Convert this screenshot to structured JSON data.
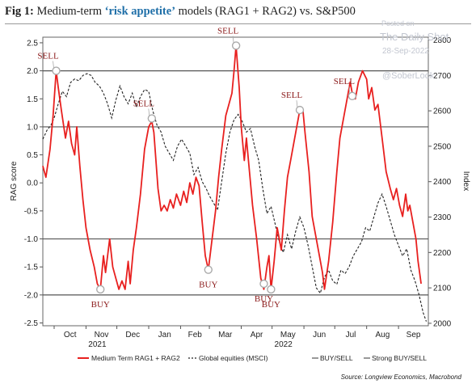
{
  "figure": {
    "prefix": "Fig 1:",
    "title_before": "Medium-term ",
    "title_highlight": "‘risk appetite’",
    "title_after": " models (RAG1 + RAG2) vs. S&P500"
  },
  "watermark": {
    "posted": "Posted on",
    "site": "The Daily Shot",
    "date": "28-Sep-2022",
    "handle": "@SoberLook"
  },
  "source": "Source: Longview Economics, Macrobond",
  "colors": {
    "rag": "#e8201f",
    "equities": "#222222",
    "threshold": "#555555",
    "annotation": "#8b1a1a",
    "marker": "#aaaaaa"
  },
  "chart_data": {
    "type": "line",
    "x_range": [
      "2021-09-20",
      "2022-09-30"
    ],
    "x_ticks": [
      {
        "label": "Oct",
        "date": "2021-10-01"
      },
      {
        "label": "Nov",
        "date": "2021-11-01"
      },
      {
        "label": "Dec",
        "date": "2021-12-01"
      },
      {
        "label": "Jan",
        "date": "2022-01-01"
      },
      {
        "label": "Feb",
        "date": "2022-02-01"
      },
      {
        "label": "Mar",
        "date": "2022-03-01"
      },
      {
        "label": "Apr",
        "date": "2022-04-01"
      },
      {
        "label": "May",
        "date": "2022-05-01"
      },
      {
        "label": "Jun",
        "date": "2022-06-01"
      },
      {
        "label": "Jul",
        "date": "2022-07-01"
      },
      {
        "label": "Aug",
        "date": "2022-08-01"
      },
      {
        "label": "Sep",
        "date": "2022-09-01"
      }
    ],
    "year_labels": [
      {
        "label": "2021",
        "date": "2021-11-01"
      },
      {
        "label": "2022",
        "date": "2022-05-01"
      }
    ],
    "y_left": {
      "label": "RAG score",
      "range": [
        -2.55,
        2.6
      ],
      "ticks": [
        "2.5",
        "2.0",
        "1.5",
        "1.0",
        "0.5",
        "0.0",
        "-0.5",
        "-1.0",
        "-1.5",
        "-2.0",
        "-2.5"
      ]
    },
    "y_right": {
      "label": "Index",
      "range": [
        1993,
        2808
      ],
      "ticks": [
        "2800",
        "2700",
        "2600",
        "2500",
        "2400",
        "2300",
        "2200",
        "2100",
        "2000"
      ]
    },
    "thresholds": {
      "strong": [
        2.0,
        -2.0
      ],
      "buy_sell": [
        1.0,
        -1.0
      ]
    },
    "series": [
      {
        "name": "Medium Term RAG1 + RAG2",
        "axis": "left",
        "points": [
          [
            "2021-09-20",
            0.3
          ],
          [
            "2021-09-23",
            0.1
          ],
          [
            "2021-09-27",
            0.6
          ],
          [
            "2021-09-30",
            1.2
          ],
          [
            "2021-10-03",
            2.0
          ],
          [
            "2021-10-05",
            1.7
          ],
          [
            "2021-10-08",
            1.3
          ],
          [
            "2021-10-12",
            0.8
          ],
          [
            "2021-10-15",
            1.1
          ],
          [
            "2021-10-18",
            0.7
          ],
          [
            "2021-10-21",
            0.5
          ],
          [
            "2021-10-23",
            1.0
          ],
          [
            "2021-10-26",
            0.3
          ],
          [
            "2021-10-29",
            -0.3
          ],
          [
            "2021-11-01",
            -0.8
          ],
          [
            "2021-11-05",
            -1.2
          ],
          [
            "2021-11-09",
            -1.5
          ],
          [
            "2021-11-12",
            -1.8
          ],
          [
            "2021-11-15",
            -1.9
          ],
          [
            "2021-11-18",
            -1.3
          ],
          [
            "2021-11-20",
            -1.6
          ],
          [
            "2021-11-24",
            -1.0
          ],
          [
            "2021-11-27",
            -1.5
          ],
          [
            "2021-11-30",
            -1.7
          ],
          [
            "2021-12-03",
            -1.9
          ],
          [
            "2021-12-06",
            -1.75
          ],
          [
            "2021-12-09",
            -1.9
          ],
          [
            "2021-12-12",
            -1.4
          ],
          [
            "2021-12-14",
            -1.8
          ],
          [
            "2021-12-17",
            -1.2
          ],
          [
            "2021-12-20",
            -0.8
          ],
          [
            "2021-12-24",
            -0.2
          ],
          [
            "2021-12-28",
            0.6
          ],
          [
            "2022-01-01",
            1.0
          ],
          [
            "2022-01-04",
            1.1
          ],
          [
            "2022-01-06",
            0.9
          ],
          [
            "2022-01-10",
            -0.1
          ],
          [
            "2022-01-13",
            -0.5
          ],
          [
            "2022-01-16",
            -0.4
          ],
          [
            "2022-01-19",
            -0.5
          ],
          [
            "2022-01-22",
            -0.3
          ],
          [
            "2022-01-25",
            -0.45
          ],
          [
            "2022-01-28",
            -0.2
          ],
          [
            "2022-02-01",
            -0.4
          ],
          [
            "2022-02-04",
            -0.15
          ],
          [
            "2022-02-07",
            -0.35
          ],
          [
            "2022-02-10",
            0.0
          ],
          [
            "2022-02-13",
            -0.2
          ],
          [
            "2022-02-16",
            0.1
          ],
          [
            "2022-02-19",
            -0.05
          ],
          [
            "2022-02-22",
            -0.7
          ],
          [
            "2022-02-25",
            -1.3
          ],
          [
            "2022-02-28",
            -1.55
          ],
          [
            "2022-03-03",
            -1.1
          ],
          [
            "2022-03-07",
            -0.5
          ],
          [
            "2022-03-10",
            0.1
          ],
          [
            "2022-03-13",
            0.6
          ],
          [
            "2022-03-17",
            1.2
          ],
          [
            "2022-03-20",
            1.4
          ],
          [
            "2022-03-23",
            1.6
          ],
          [
            "2022-03-25",
            2.0
          ],
          [
            "2022-03-27",
            2.45
          ],
          [
            "2022-03-30",
            1.7
          ],
          [
            "2022-04-01",
            1.0
          ],
          [
            "2022-04-04",
            0.4
          ],
          [
            "2022-04-06",
            0.8
          ],
          [
            "2022-04-09",
            0.2
          ],
          [
            "2022-04-12",
            -0.4
          ],
          [
            "2022-04-16",
            -1.0
          ],
          [
            "2022-04-20",
            -1.7
          ],
          [
            "2022-04-23",
            -1.9
          ],
          [
            "2022-04-26",
            -1.5
          ],
          [
            "2022-04-28",
            -1.3
          ],
          [
            "2022-04-30",
            -1.9
          ],
          [
            "2022-05-03",
            -1.4
          ],
          [
            "2022-05-06",
            -0.8
          ],
          [
            "2022-05-10",
            -1.2
          ],
          [
            "2022-05-13",
            -0.5
          ],
          [
            "2022-05-16",
            0.1
          ],
          [
            "2022-05-19",
            0.4
          ],
          [
            "2022-05-22",
            0.7
          ],
          [
            "2022-05-25",
            1.0
          ],
          [
            "2022-05-28",
            1.3
          ],
          [
            "2022-05-31",
            1.3
          ],
          [
            "2022-06-02",
            0.9
          ],
          [
            "2022-06-06",
            0.2
          ],
          [
            "2022-06-09",
            -0.6
          ],
          [
            "2022-06-13",
            -1.0
          ],
          [
            "2022-06-16",
            -1.3
          ],
          [
            "2022-06-19",
            -1.6
          ],
          [
            "2022-06-21",
            -1.9
          ],
          [
            "2022-06-25",
            -1.4
          ],
          [
            "2022-06-29",
            -0.7
          ],
          [
            "2022-07-03",
            0.2
          ],
          [
            "2022-07-06",
            0.8
          ],
          [
            "2022-07-10",
            1.2
          ],
          [
            "2022-07-13",
            1.5
          ],
          [
            "2022-07-16",
            1.8
          ],
          [
            "2022-07-18",
            1.6
          ],
          [
            "2022-07-21",
            1.5
          ],
          [
            "2022-07-24",
            1.8
          ],
          [
            "2022-07-28",
            2.0
          ],
          [
            "2022-08-01",
            1.85
          ],
          [
            "2022-08-03",
            1.5
          ],
          [
            "2022-08-06",
            1.7
          ],
          [
            "2022-08-09",
            1.3
          ],
          [
            "2022-08-12",
            1.4
          ],
          [
            "2022-08-16",
            0.8
          ],
          [
            "2022-08-20",
            0.2
          ],
          [
            "2022-08-24",
            -0.1
          ],
          [
            "2022-08-27",
            -0.3
          ],
          [
            "2022-08-30",
            -0.1
          ],
          [
            "2022-09-02",
            -0.4
          ],
          [
            "2022-09-05",
            -0.6
          ],
          [
            "2022-09-08",
            -0.2
          ],
          [
            "2022-09-10",
            -0.5
          ],
          [
            "2022-09-12",
            -0.4
          ],
          [
            "2022-09-15",
            -0.7
          ],
          [
            "2022-09-18",
            -1.0
          ],
          [
            "2022-09-20",
            -1.4
          ],
          [
            "2022-09-23",
            -1.8
          ]
        ]
      },
      {
        "name": "Global equities (MSCI)",
        "axis": "right",
        "points": [
          [
            "2021-09-20",
            2520
          ],
          [
            "2021-09-24",
            2545
          ],
          [
            "2021-09-28",
            2560
          ],
          [
            "2021-10-01",
            2580
          ],
          [
            "2021-10-05",
            2620
          ],
          [
            "2021-10-09",
            2655
          ],
          [
            "2021-10-13",
            2640
          ],
          [
            "2021-10-17",
            2680
          ],
          [
            "2021-10-21",
            2690
          ],
          [
            "2021-10-25",
            2685
          ],
          [
            "2021-10-29",
            2700
          ],
          [
            "2021-11-02",
            2705
          ],
          [
            "2021-11-06",
            2700
          ],
          [
            "2021-11-10",
            2680
          ],
          [
            "2021-11-14",
            2670
          ],
          [
            "2021-11-18",
            2650
          ],
          [
            "2021-11-22",
            2620
          ],
          [
            "2021-11-26",
            2580
          ],
          [
            "2021-11-30",
            2630
          ],
          [
            "2021-12-04",
            2670
          ],
          [
            "2021-12-08",
            2640
          ],
          [
            "2021-12-12",
            2620
          ],
          [
            "2021-12-16",
            2650
          ],
          [
            "2021-12-20",
            2610
          ],
          [
            "2021-12-24",
            2640
          ],
          [
            "2021-12-28",
            2660
          ],
          [
            "2022-01-01",
            2655
          ],
          [
            "2022-01-05",
            2600
          ],
          [
            "2022-01-09",
            2560
          ],
          [
            "2022-01-13",
            2540
          ],
          [
            "2022-01-17",
            2500
          ],
          [
            "2022-01-21",
            2480
          ],
          [
            "2022-01-25",
            2460
          ],
          [
            "2022-01-29",
            2500
          ],
          [
            "2022-02-02",
            2520
          ],
          [
            "2022-02-06",
            2500
          ],
          [
            "2022-02-10",
            2480
          ],
          [
            "2022-02-14",
            2420
          ],
          [
            "2022-02-18",
            2440
          ],
          [
            "2022-02-22",
            2400
          ],
          [
            "2022-02-26",
            2380
          ],
          [
            "2022-03-01",
            2360
          ],
          [
            "2022-03-05",
            2340
          ],
          [
            "2022-03-09",
            2320
          ],
          [
            "2022-03-13",
            2400
          ],
          [
            "2022-03-17",
            2480
          ],
          [
            "2022-03-21",
            2540
          ],
          [
            "2022-03-25",
            2575
          ],
          [
            "2022-03-29",
            2590
          ],
          [
            "2022-04-02",
            2570
          ],
          [
            "2022-04-06",
            2540
          ],
          [
            "2022-04-10",
            2550
          ],
          [
            "2022-04-14",
            2500
          ],
          [
            "2022-04-18",
            2460
          ],
          [
            "2022-04-22",
            2380
          ],
          [
            "2022-04-26",
            2310
          ],
          [
            "2022-04-30",
            2330
          ],
          [
            "2022-05-04",
            2280
          ],
          [
            "2022-05-08",
            2230
          ],
          [
            "2022-05-12",
            2200
          ],
          [
            "2022-05-16",
            2250
          ],
          [
            "2022-05-20",
            2210
          ],
          [
            "2022-05-24",
            2260
          ],
          [
            "2022-05-28",
            2300
          ],
          [
            "2022-06-01",
            2270
          ],
          [
            "2022-06-05",
            2220
          ],
          [
            "2022-06-09",
            2160
          ],
          [
            "2022-06-13",
            2100
          ],
          [
            "2022-06-17",
            2085
          ],
          [
            "2022-06-21",
            2130
          ],
          [
            "2022-06-25",
            2150
          ],
          [
            "2022-06-29",
            2120
          ],
          [
            "2022-07-03",
            2110
          ],
          [
            "2022-07-07",
            2150
          ],
          [
            "2022-07-11",
            2140
          ],
          [
            "2022-07-15",
            2160
          ],
          [
            "2022-07-19",
            2190
          ],
          [
            "2022-07-23",
            2210
          ],
          [
            "2022-07-27",
            2230
          ],
          [
            "2022-07-31",
            2270
          ],
          [
            "2022-08-04",
            2260
          ],
          [
            "2022-08-08",
            2300
          ],
          [
            "2022-08-12",
            2340
          ],
          [
            "2022-08-16",
            2365
          ],
          [
            "2022-08-20",
            2330
          ],
          [
            "2022-08-24",
            2290
          ],
          [
            "2022-08-28",
            2250
          ],
          [
            "2022-09-01",
            2220
          ],
          [
            "2022-09-05",
            2190
          ],
          [
            "2022-09-09",
            2210
          ],
          [
            "2022-09-13",
            2150
          ],
          [
            "2022-09-17",
            2120
          ],
          [
            "2022-09-21",
            2080
          ],
          [
            "2022-09-25",
            2030
          ],
          [
            "2022-09-28",
            2005
          ]
        ]
      }
    ],
    "annotations": [
      {
        "text": "SELL",
        "date": "2021-10-03",
        "value": 2.0,
        "label_side": "above"
      },
      {
        "text": "BUY",
        "date": "2021-11-15",
        "value": -1.9,
        "label_side": "below"
      },
      {
        "text": "SELL",
        "date": "2022-01-04",
        "value": 1.15,
        "label_side": "above"
      },
      {
        "text": "BUY",
        "date": "2022-02-28",
        "value": -1.55,
        "label_side": "below"
      },
      {
        "text": "SELL",
        "date": "2022-03-27",
        "value": 2.45,
        "label_side": "above"
      },
      {
        "text": "BUY",
        "date": "2022-04-23",
        "value": -1.8,
        "label_side": "below"
      },
      {
        "text": "BUY",
        "date": "2022-04-30",
        "value": -1.9,
        "label_side": "below"
      },
      {
        "text": "SELL",
        "date": "2022-05-28",
        "value": 1.3,
        "label_side": "above"
      },
      {
        "text": "SELL",
        "date": "2022-07-18",
        "value": 1.55,
        "label_side": "above"
      }
    ],
    "legend": {
      "placement": "bottom",
      "items": [
        {
          "label": "Medium Term RAG1 + RAG2",
          "style": "solid-red"
        },
        {
          "label": "Global equities (MSCI)",
          "style": "dashed-black"
        },
        {
          "label": "BUY/SELL",
          "style": "solid-gray"
        },
        {
          "label": "Strong BUY/SELL",
          "style": "solid-gray"
        }
      ]
    }
  }
}
